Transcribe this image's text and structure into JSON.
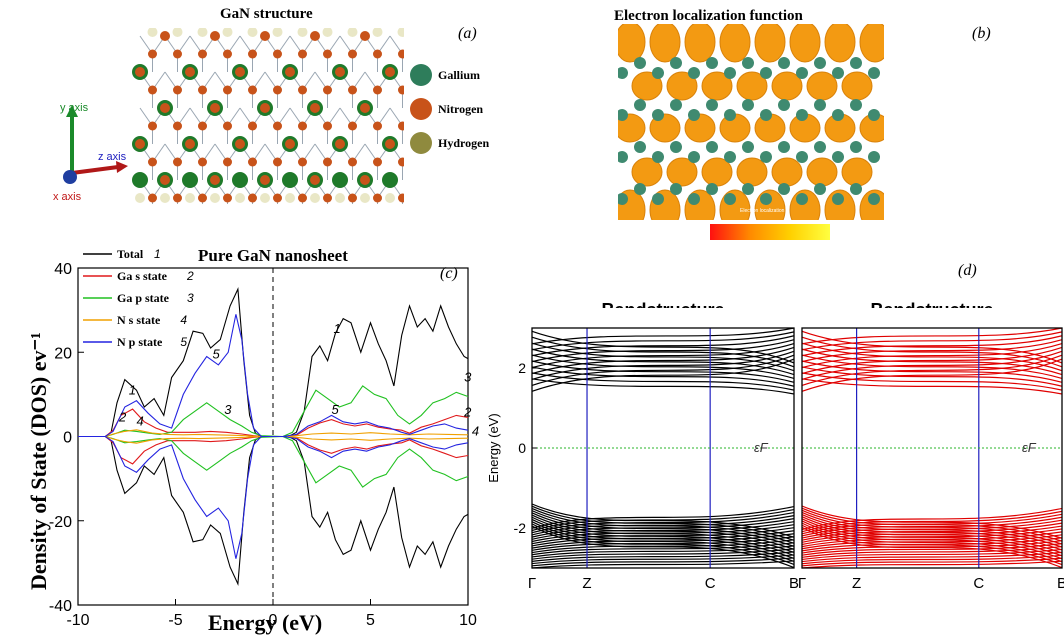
{
  "panel_a": {
    "title": "GaN structure",
    "label": "(a)",
    "legend": [
      {
        "name": "Gallium",
        "color": "#2e7d5b"
      },
      {
        "name": "Nitrogen",
        "color": "#c8531a"
      },
      {
        "name": "Hydrogen",
        "color": "#8f8a3e"
      }
    ],
    "axes": {
      "y": "y axis",
      "z": "z axis",
      "x": "x axis"
    }
  },
  "panel_b": {
    "title": "Electron localization function",
    "label": "(b)",
    "colorbar_text": "Electron localization"
  },
  "chart_data": [
    {
      "type": "line",
      "panel": "(c)",
      "title": "Pure GaN nanosheet",
      "xlabel": "Energy (eV)",
      "ylabel": "Density of State (DOS) ev⁻¹",
      "xlim": [
        -10,
        10
      ],
      "ylim": [
        -40,
        40
      ],
      "xticks": [
        -10,
        -5,
        0,
        5,
        10
      ],
      "yticks": [
        -40,
        -20,
        0,
        20,
        40
      ],
      "fermi_line_x": 0,
      "legend_position": "top-left",
      "legend": [
        {
          "label": "Total",
          "num": "1",
          "color": "#000000"
        },
        {
          "label": "Ga s state",
          "num": "2",
          "color": "#e0191b"
        },
        {
          "label": "Ga p state",
          "num": "3",
          "color": "#21c121"
        },
        {
          "label": "N s state",
          "num": "4",
          "color": "#f0a000"
        },
        {
          "label": "N p state",
          "num": "5",
          "color": "#2424e0"
        }
      ],
      "annotations": [
        {
          "text": "1",
          "x": -7.4,
          "y": 10
        },
        {
          "text": "2",
          "x": -7.9,
          "y": 3.6
        },
        {
          "text": "4",
          "x": -7.0,
          "y": 2.6
        },
        {
          "text": "5",
          "x": -3.1,
          "y": 18.5
        },
        {
          "text": "3",
          "x": -2.5,
          "y": 5.3
        },
        {
          "text": "1",
          "x": 3.1,
          "y": 24.6
        },
        {
          "text": "5",
          "x": 3.0,
          "y": 5.3
        },
        {
          "text": "3",
          "x": 9.8,
          "y": 13.1
        },
        {
          "text": "2",
          "x": 9.8,
          "y": 4.8
        },
        {
          "text": "4",
          "x": 10.2,
          "y": 0.2
        }
      ],
      "series": [
        {
          "name": "Total",
          "color": "#000000",
          "mirror": true,
          "x": [
            -10,
            -8.6,
            -8.3,
            -8.0,
            -7.6,
            -7.0,
            -6.6,
            -6.1,
            -5.6,
            -5.2,
            -4.6,
            -4.1,
            -3.6,
            -3.2,
            -2.7,
            -2.2,
            -1.8,
            -1.5,
            -1.2,
            -0.9,
            -0.6,
            -0.2,
            0.3,
            0.8,
            1.2,
            1.6,
            2.0,
            2.4,
            2.8,
            3.2,
            3.6,
            4.0,
            4.5,
            5.0,
            5.4,
            5.8,
            6.2,
            6.6,
            7.0,
            7.4,
            7.8,
            8.2,
            8.6,
            9.0,
            9.4,
            9.8,
            10
          ],
          "y": [
            0,
            0,
            1.0,
            8.0,
            13.5,
            11.0,
            7.0,
            9.0,
            5.0,
            14.0,
            18.0,
            25.0,
            24.5,
            21.0,
            23.0,
            31.0,
            35.0,
            18.0,
            5.0,
            0.8,
            0,
            0,
            0,
            0,
            1.0,
            6.0,
            19.0,
            21.5,
            18.0,
            24.5,
            28.0,
            27.0,
            20.0,
            27.0,
            22.0,
            18.0,
            12.0,
            24.0,
            31.0,
            26.0,
            28.0,
            25.0,
            31.0,
            26.0,
            22.0,
            19.0,
            18.5
          ]
        },
        {
          "name": "Ga s state",
          "color": "#e0191b",
          "mirror": true,
          "x": [
            -10,
            -8.6,
            -8.2,
            -7.8,
            -7.2,
            -6.6,
            -6.0,
            -5.4,
            -4.8,
            -4.0,
            -3.2,
            -2.4,
            -1.6,
            -1.0,
            -0.5,
            0.5,
            1.2,
            1.8,
            2.4,
            3.0,
            3.6,
            4.2,
            4.8,
            5.4,
            6.0,
            6.6,
            7.0,
            7.6,
            8.2,
            8.8,
            9.4,
            10
          ],
          "y": [
            0,
            0,
            1.5,
            5.0,
            6.5,
            3.5,
            2.0,
            1.0,
            1.0,
            1.0,
            1.2,
            1.0,
            0.6,
            0.2,
            0,
            0,
            0.3,
            2.0,
            3.2,
            4.0,
            3.0,
            2.5,
            3.0,
            2.2,
            1.8,
            1.5,
            0.8,
            2.2,
            3.0,
            4.0,
            5.0,
            4.5
          ]
        },
        {
          "name": "Ga p state",
          "color": "#21c121",
          "mirror": true,
          "x": [
            -10,
            -8.6,
            -8.2,
            -7.6,
            -7.0,
            -6.4,
            -5.8,
            -5.2,
            -4.6,
            -4.0,
            -3.4,
            -2.8,
            -2.2,
            -1.6,
            -1.1,
            -0.6,
            0.5,
            1.0,
            1.6,
            2.2,
            2.8,
            3.4,
            4.0,
            4.6,
            5.2,
            5.8,
            6.4,
            7.0,
            7.6,
            8.2,
            8.8,
            9.4,
            10
          ],
          "y": [
            0,
            0,
            0.5,
            1.5,
            1.2,
            0.8,
            0.5,
            1.0,
            4.0,
            6.0,
            8.0,
            6.0,
            4.0,
            2.5,
            1.0,
            0.2,
            0,
            1.0,
            6.0,
            11.0,
            9.0,
            7.0,
            8.0,
            12.0,
            10.0,
            9.0,
            5.0,
            3.0,
            5.0,
            8.0,
            9.0,
            10.5,
            9.5
          ]
        },
        {
          "name": "N s state",
          "color": "#f0a000",
          "mirror": true,
          "x": [
            -10,
            -8.6,
            -8.2,
            -7.6,
            -7.0,
            -6.2,
            -5.4,
            -4.6,
            -3.8,
            -3.0,
            -2.2,
            -1.4,
            -0.8,
            0.5,
            1.2,
            2.0,
            3.0,
            4.0,
            5.0,
            6.0,
            7.0,
            8.0,
            9.0,
            10
          ],
          "y": [
            0,
            0,
            0.6,
            1.2,
            1.6,
            0.8,
            0.5,
            0.4,
            0.5,
            0.4,
            0.3,
            0.2,
            0,
            0,
            0.2,
            0.6,
            0.8,
            0.6,
            0.9,
            0.6,
            0.4,
            0.6,
            0.5,
            0.4
          ]
        },
        {
          "name": "N p state",
          "color": "#2424e0",
          "mirror": true,
          "x": [
            -10,
            -8.6,
            -8.2,
            -7.6,
            -7.0,
            -6.4,
            -5.8,
            -5.2,
            -4.6,
            -4.0,
            -3.4,
            -2.8,
            -2.3,
            -1.9,
            -1.6,
            -1.3,
            -1.0,
            -0.6,
            0.5,
            1.2,
            1.8,
            2.4,
            3.0,
            3.6,
            4.2,
            4.8,
            5.4,
            6.0,
            6.6,
            7.0,
            7.6,
            8.2,
            8.8,
            9.4,
            10
          ],
          "y": [
            0,
            0,
            1.2,
            7.0,
            8.5,
            5.5,
            3.0,
            2.0,
            10.0,
            15.0,
            19.0,
            17.0,
            20.0,
            29.0,
            23.0,
            10.0,
            2.0,
            0,
            0,
            0.5,
            2.5,
            3.5,
            5.0,
            3.5,
            3.0,
            3.5,
            2.5,
            2.0,
            1.0,
            0.5,
            1.5,
            2.5,
            3.0,
            2.0,
            1.5
          ]
        }
      ]
    },
    {
      "type": "line",
      "panel": "(d)",
      "title": "Bandstructure",
      "ylabel": "Energy (eV)",
      "ylim": [
        -3,
        3
      ],
      "yticks": [
        -2,
        0,
        2
      ],
      "kpoints": [
        "Γ",
        "Z",
        "C",
        "B"
      ],
      "fermi_label": "εF",
      "band_color": "#000000",
      "valence_band_range": [
        -3,
        -1.4
      ],
      "conduction_band_range": [
        1.35,
        3
      ],
      "fermi_color": "#29b629",
      "kline_color": "#2020c0"
    },
    {
      "type": "line",
      "panel": "(d)",
      "title": "Bandstructure",
      "ylim": [
        -3,
        3
      ],
      "kpoints": [
        "Γ",
        "Z",
        "C",
        "B"
      ],
      "fermi_label": "εF",
      "band_color": "#e00000",
      "valence_band_range": [
        -3,
        -1.45
      ],
      "conduction_band_range": [
        1.35,
        3
      ],
      "fermi_color": "#29b629",
      "kline_color": "#2020c0"
    }
  ],
  "panel_d_label": "(d)"
}
